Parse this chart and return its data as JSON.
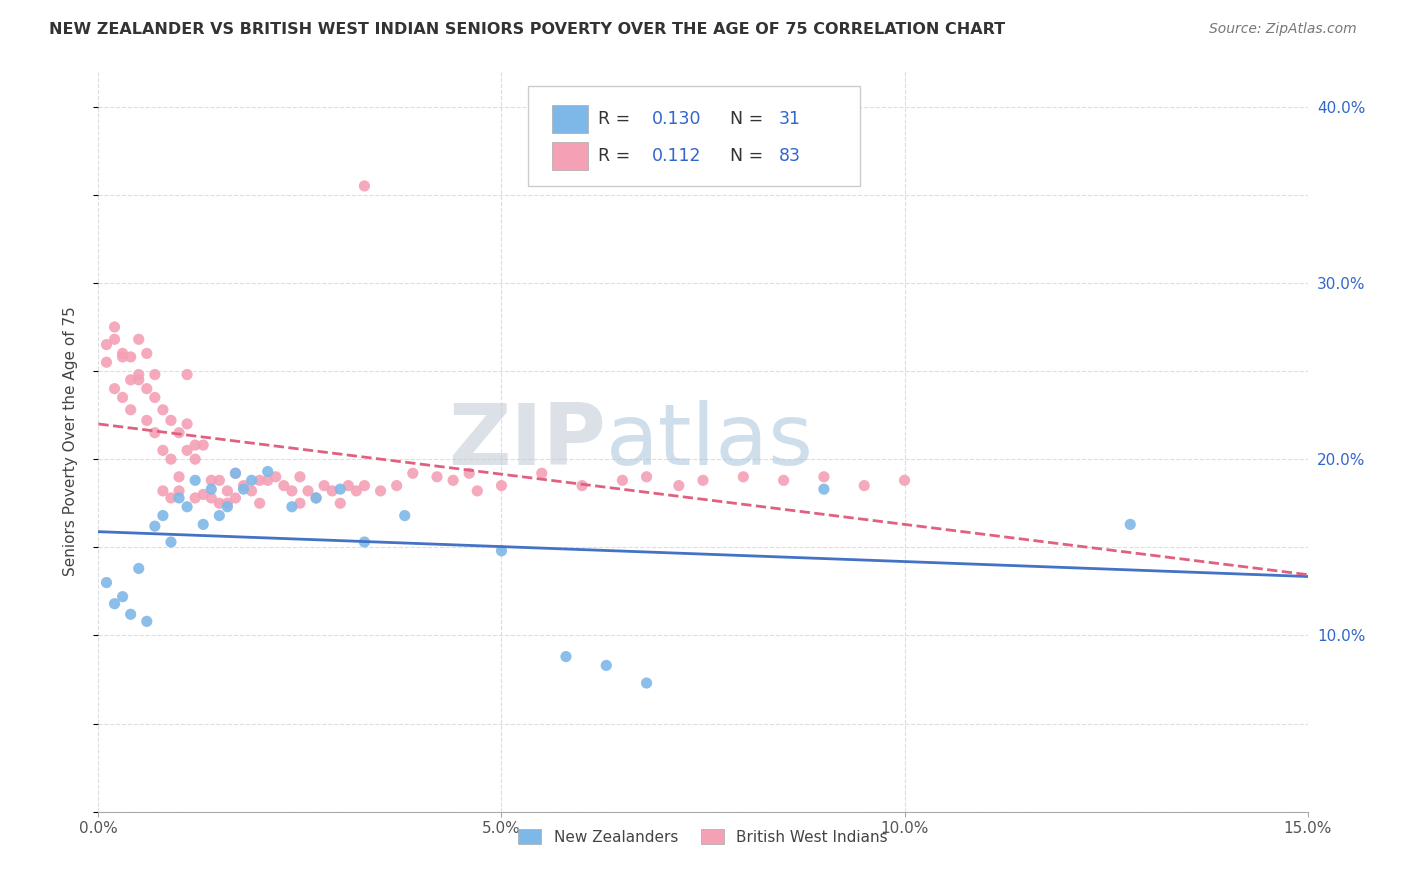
{
  "title": "NEW ZEALANDER VS BRITISH WEST INDIAN SENIORS POVERTY OVER THE AGE OF 75 CORRELATION CHART",
  "source": "Source: ZipAtlas.com",
  "ylabel": "Seniors Poverty Over the Age of 75",
  "xlim": [
    0.0,
    0.15
  ],
  "ylim": [
    0.0,
    0.42
  ],
  "xticklabels": [
    "0.0%",
    "5.0%",
    "10.0%",
    "15.0%"
  ],
  "xtick_vals": [
    0.0,
    0.05,
    0.1,
    0.15
  ],
  "ytick_vals": [
    0.0,
    0.05,
    0.1,
    0.15,
    0.2,
    0.25,
    0.3,
    0.35,
    0.4
  ],
  "ytick_right_vals": [
    0.1,
    0.2,
    0.3,
    0.4
  ],
  "yticklabels_right": [
    "10.0%",
    "20.0%",
    "30.0%",
    "40.0%"
  ],
  "nz_color": "#7EB8E8",
  "bwi_color": "#F4A0B5",
  "nz_line_color": "#4472C4",
  "bwi_line_color": "#E06080",
  "background_color": "#FFFFFF",
  "grid_color": "#DDDDDD",
  "watermark_zip": "ZIP",
  "watermark_atlas": "atlas",
  "legend_R1": "0.130",
  "legend_N1": "31",
  "legend_R2": "0.112",
  "legend_N2": "83",
  "nz_label": "New Zealanders",
  "bwi_label": "British West Indians",
  "nz_x": [
    0.001,
    0.002,
    0.003,
    0.004,
    0.005,
    0.006,
    0.007,
    0.008,
    0.009,
    0.01,
    0.011,
    0.012,
    0.013,
    0.014,
    0.015,
    0.016,
    0.017,
    0.018,
    0.019,
    0.021,
    0.024,
    0.027,
    0.03,
    0.033,
    0.038,
    0.05,
    0.058,
    0.063,
    0.068,
    0.09,
    0.128
  ],
  "nz_y": [
    0.13,
    0.118,
    0.122,
    0.112,
    0.138,
    0.108,
    0.162,
    0.168,
    0.153,
    0.178,
    0.173,
    0.188,
    0.163,
    0.183,
    0.168,
    0.173,
    0.192,
    0.183,
    0.188,
    0.193,
    0.173,
    0.178,
    0.183,
    0.153,
    0.168,
    0.148,
    0.088,
    0.083,
    0.073,
    0.183,
    0.163
  ],
  "bwi_x": [
    0.001,
    0.002,
    0.002,
    0.003,
    0.003,
    0.004,
    0.004,
    0.005,
    0.005,
    0.006,
    0.006,
    0.007,
    0.007,
    0.008,
    0.008,
    0.009,
    0.009,
    0.01,
    0.01,
    0.011,
    0.011,
    0.012,
    0.012,
    0.013,
    0.013,
    0.014,
    0.014,
    0.015,
    0.015,
    0.016,
    0.016,
    0.017,
    0.017,
    0.018,
    0.019,
    0.02,
    0.02,
    0.021,
    0.022,
    0.023,
    0.024,
    0.025,
    0.025,
    0.026,
    0.027,
    0.028,
    0.029,
    0.03,
    0.031,
    0.032,
    0.033,
    0.035,
    0.037,
    0.039,
    0.042,
    0.044,
    0.046,
    0.047,
    0.05,
    0.055,
    0.06,
    0.065,
    0.068,
    0.072,
    0.075,
    0.08,
    0.085,
    0.09,
    0.095,
    0.1,
    0.001,
    0.002,
    0.003,
    0.004,
    0.005,
    0.033,
    0.006,
    0.007,
    0.008,
    0.009,
    0.01,
    0.011,
    0.012
  ],
  "bwi_y": [
    0.255,
    0.24,
    0.275,
    0.26,
    0.235,
    0.228,
    0.258,
    0.268,
    0.245,
    0.26,
    0.222,
    0.248,
    0.215,
    0.205,
    0.182,
    0.2,
    0.178,
    0.19,
    0.182,
    0.248,
    0.22,
    0.208,
    0.178,
    0.208,
    0.18,
    0.178,
    0.188,
    0.175,
    0.188,
    0.182,
    0.175,
    0.192,
    0.178,
    0.185,
    0.182,
    0.188,
    0.175,
    0.188,
    0.19,
    0.185,
    0.182,
    0.19,
    0.175,
    0.182,
    0.178,
    0.185,
    0.182,
    0.175,
    0.185,
    0.182,
    0.185,
    0.182,
    0.185,
    0.192,
    0.19,
    0.188,
    0.192,
    0.182,
    0.185,
    0.192,
    0.185,
    0.188,
    0.19,
    0.185,
    0.188,
    0.19,
    0.188,
    0.19,
    0.185,
    0.188,
    0.265,
    0.268,
    0.258,
    0.245,
    0.248,
    0.355,
    0.24,
    0.235,
    0.228,
    0.222,
    0.215,
    0.205,
    0.2
  ]
}
